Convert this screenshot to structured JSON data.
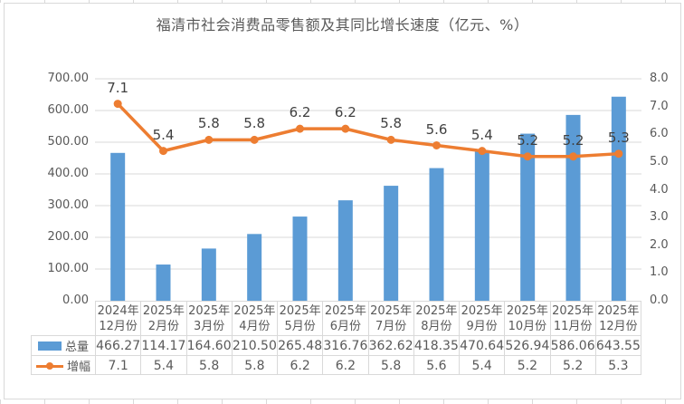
{
  "chart": {
    "title": "福清市社会消费品零售额及其同比增长速度（亿元、%）"
  },
  "colors": {
    "bar": "#5B9BD5",
    "line": "#ED7D31",
    "gridline": "#D9D9D9",
    "axis_text": "#595959",
    "data_label_text": "#404040",
    "table_border": "#D9D9D9",
    "title_text": "#595959"
  },
  "chart_data": {
    "type": "bar",
    "subtype": "bar+line combo, dual axis, with data table",
    "title": "福清市社会消费品零售额及其同比增长速度（亿元、%）",
    "categories": [
      "2024年\n12月份",
      "2025年\n2月份",
      "2025年\n3月份",
      "2025年\n4月份",
      "2025年\n5月份",
      "2025年\n6月份",
      "2025年\n7月份",
      "2025年\n8月份",
      "2025年\n9月份",
      "2025年\n10月份",
      "2025年\n11月份",
      "2025年\n12月份"
    ],
    "series": [
      {
        "name": "总量",
        "type": "bar",
        "axis": "left",
        "color": "#5B9BD5",
        "values": [
          466.27,
          114.17,
          164.6,
          210.5,
          265.48,
          316.76,
          362.62,
          418.35,
          470.64,
          526.94,
          586.06,
          643.55
        ],
        "display": [
          "466.27",
          "114.17",
          "164.60",
          "210.50",
          "265.48",
          "316.76",
          "362.62",
          "418.35",
          "470.64",
          "526.94",
          "586.06",
          "643.55"
        ]
      },
      {
        "name": "增幅",
        "type": "line",
        "axis": "right",
        "color": "#ED7D31",
        "values": [
          7.1,
          5.4,
          5.8,
          5.8,
          6.2,
          6.2,
          5.8,
          5.6,
          5.4,
          5.2,
          5.2,
          5.3
        ],
        "display": [
          "7.1",
          "5.4",
          "5.8",
          "5.8",
          "6.2",
          "6.2",
          "5.8",
          "5.6",
          "5.4",
          "5.2",
          "5.2",
          "5.3"
        ]
      }
    ],
    "left_axis": {
      "min": 0,
      "max": 700,
      "step": 100,
      "ticks": [
        "0.00",
        "100.00",
        "200.00",
        "300.00",
        "400.00",
        "500.00",
        "600.00",
        "700.00"
      ]
    },
    "right_axis": {
      "min": 0,
      "max": 8,
      "step": 1,
      "ticks": [
        "0.0",
        "1.0",
        "2.0",
        "3.0",
        "4.0",
        "5.0",
        "6.0",
        "7.0",
        "8.0"
      ]
    },
    "grid": true,
    "legend_position": "data-table-left",
    "data_table": true
  }
}
